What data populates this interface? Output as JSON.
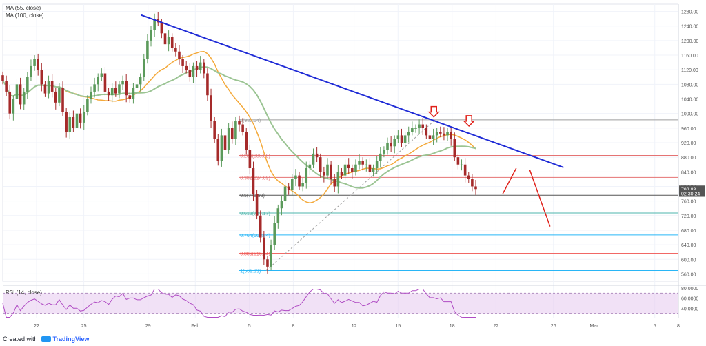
{
  "window": {
    "created_with_label": "Created with",
    "brand": "TradingView",
    "icon": "tradingview-cloud-icon"
  },
  "indicators": {
    "ma55_label": "MA (55, close)",
    "ma100_label": "MA (100, close)",
    "rsi_label": "RSI (14, close)"
  },
  "colors": {
    "up_candle": "#5b9a5b",
    "down_candle": "#a52a2a",
    "ma55": "#f4a93a",
    "ma100": "#9bc493",
    "trendline": "#1f2bd6",
    "arrow": "#e0211a",
    "projection": "#e0211a",
    "rsi_line": "#b04cc4",
    "rsi_band": "#e6c9ee",
    "price_badge": "#555555",
    "fib_dashed": "#9e9e9e"
  },
  "chart_data": [
    {
      "type": "candlestick",
      "ylim": [
        540,
        1300
      ],
      "y_ticks": [
        "1280.00",
        "1240.00",
        "1200.00",
        "1160.00",
        "1120.00",
        "1080.00",
        "1040.00",
        "1000.00",
        "960.00",
        "920.00",
        "880.00",
        "840.00",
        "800.00",
        "760.00",
        "720.00",
        "680.00",
        "640.00",
        "600.00",
        "560.00"
      ],
      "x_ticks": [
        "22",
        "25",
        "29",
        "Feb",
        "5",
        "8",
        "12",
        "15",
        "18",
        "22",
        "26",
        "Mar",
        "5",
        "8"
      ],
      "x_tick_pos": [
        0.05,
        0.12,
        0.215,
        0.285,
        0.365,
        0.43,
        0.52,
        0.585,
        0.665,
        0.73,
        0.815,
        0.875,
        0.965,
        1.0
      ],
      "price_axis_labels": [
        {
          "text": "792.83",
          "value": 792.83,
          "style": "dark"
        },
        {
          "text": "02:30:24",
          "value": 781,
          "style": "dark"
        }
      ],
      "trendline": [
        [
          0.205,
          1270
        ],
        [
          0.83,
          852
        ]
      ],
      "fib_levels": [
        {
          "label": "0(982.54)",
          "value": 982.54,
          "color": "#9e9e9e"
        },
        {
          "label": "0.236(885.02)",
          "value": 885.02,
          "color": "#e57373"
        },
        {
          "label": "0.382(824.69)",
          "value": 824.69,
          "color": "#e57373"
        },
        {
          "label": "0.5(775.93)",
          "value": 775.93,
          "color": "#555555"
        },
        {
          "label": "0.618(727.17)",
          "value": 727.17,
          "color": "#4db6ac"
        },
        {
          "label": "0.764(666.84)",
          "value": 666.84,
          "color": "#29b6f6"
        },
        {
          "label": "0.886(616.44)",
          "value": 616.44,
          "color": "#ef5350"
        },
        {
          "label": "1(569.33)",
          "value": 569.33,
          "color": "#29b6f6"
        }
      ],
      "fib_anchor": [
        [
          0.39,
          569.33
        ],
        [
          0.64,
          982.54
        ]
      ],
      "arrows": [
        [
          0.638,
          1000
        ],
        [
          0.69,
          975
        ]
      ],
      "projection": [
        [
          0.74,
          780
        ],
        [
          0.76,
          850
        ],
        [
          0.78,
          845
        ],
        [
          0.81,
          690
        ]
      ],
      "candles_close": [
        1090,
        1060,
        1000,
        1040,
        1080,
        1025,
        1060,
        1100,
        1130,
        1150,
        1120,
        1080,
        1055,
        1090,
        1060,
        1030,
        1070,
        1005,
        950,
        990,
        960,
        1000,
        975,
        1005,
        1040,
        1060,
        1080,
        1100,
        1110,
        1060,
        1050,
        1070,
        1055,
        1080,
        1090,
        1050,
        1040,
        1070,
        1080,
        1100,
        1150,
        1200,
        1230,
        1260,
        1250,
        1220,
        1190,
        1210,
        1180,
        1170,
        1150,
        1130,
        1120,
        1100,
        1130,
        1120,
        1140,
        1110,
        1050,
        980,
        930,
        870,
        940,
        900,
        960,
        930,
        980,
        970,
        950,
        900,
        850,
        780,
        720,
        660,
        600,
        580,
        640,
        700,
        740,
        760,
        800,
        790,
        820,
        830,
        800,
        810,
        850,
        860,
        890,
        880,
        840,
        830,
        860,
        820,
        800,
        840,
        830,
        860,
        850,
        840,
        860,
        870,
        860,
        860,
        840,
        850,
        870,
        890,
        900,
        920,
        910,
        930,
        940,
        920,
        940,
        950,
        960,
        960,
        970,
        960,
        940,
        930,
        940,
        950,
        945,
        940,
        950,
        930,
        880,
        860,
        860,
        830,
        820,
        800,
        792.83
      ]
    },
    {
      "type": "line",
      "name": "RSI (14, close)",
      "ylim": [
        20,
        80
      ],
      "y_ticks": [
        "80.0000",
        "60.0000",
        "40.0000"
      ],
      "band": [
        30,
        70
      ]
    }
  ]
}
